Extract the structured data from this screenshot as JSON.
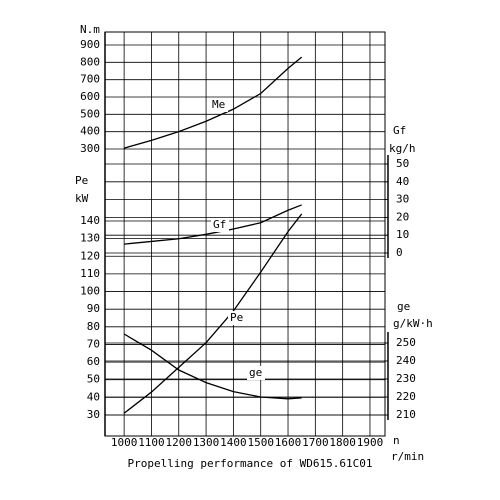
{
  "chart_data": {
    "type": "line",
    "title": "Propelling performance of WD615.61C01",
    "x_label": "n",
    "x_unit": "r/min",
    "xlim": [
      930,
      1955
    ],
    "xticks": [
      1000,
      1100,
      1200,
      1300,
      1400,
      1500,
      1600,
      1700,
      1800,
      1900
    ],
    "grid": true,
    "axes": [
      {
        "label": "N.m",
        "side": "left",
        "lim": [
          300,
          900
        ],
        "ticks": [
          300,
          400,
          500,
          600,
          700,
          800,
          900
        ]
      },
      {
        "label": "Pe",
        "unit": "kW",
        "side": "left",
        "lim": [
          30,
          140
        ],
        "ticks": [
          30,
          40,
          50,
          60,
          70,
          80,
          90,
          100,
          110,
          120,
          130,
          140
        ]
      },
      {
        "label": "Gf",
        "unit": "kg/h",
        "side": "right",
        "lim": [
          0,
          50
        ],
        "ticks": [
          0,
          10,
          20,
          30,
          40,
          50
        ]
      },
      {
        "label": "ge",
        "unit": "g/kW·h",
        "side": "right",
        "lim": [
          210,
          250
        ],
        "ticks": [
          210,
          220,
          230,
          240,
          250
        ]
      }
    ],
    "x": [
      1000,
      1100,
      1200,
      1300,
      1400,
      1500,
      1600,
      1650
    ],
    "series": [
      {
        "name": "Me",
        "axis": 0,
        "color": "#000000",
        "values": [
          305,
          350,
          400,
          460,
          530,
          620,
          765,
          830
        ]
      },
      {
        "name": "Gf",
        "axis": 2,
        "color": "#000000",
        "values": [
          5,
          6.5,
          8,
          10.5,
          13.5,
          17,
          24,
          27
        ]
      },
      {
        "name": "Pe",
        "axis": 1,
        "color": "#000000",
        "values": [
          31,
          43,
          57,
          71,
          89,
          111,
          134,
          144
        ]
      },
      {
        "name": "ge",
        "axis": 3,
        "color": "#000000",
        "values": [
          255,
          246,
          235,
          228,
          223,
          220,
          219,
          219.5
        ]
      }
    ]
  }
}
